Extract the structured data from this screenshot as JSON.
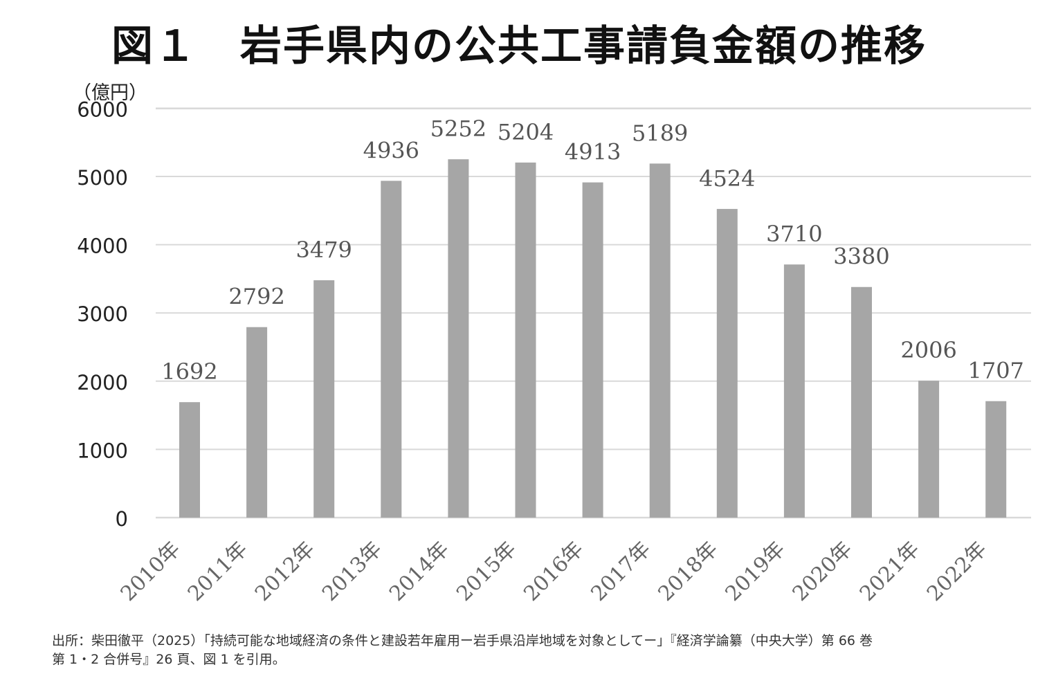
{
  "title": "図１　岩手県内の公共工事請負金額の推移",
  "source_lines": [
    "出所：柴田徹平（2025）「持続可能な地域経済の条件と建設若年雇用ー岩手県沿岸地域を対象としてー」『経済学論纂（中央大学）第 66 巻",
    "第 1・2 合併号』26 頁、図 1 を引用。"
  ],
  "chart_data": {
    "type": "bar",
    "title": "図１　岩手県内の公共工事請負金額の推移",
    "ylabel": "（億円）",
    "xlabel": "",
    "ylim": [
      0,
      6000
    ],
    "yticks": [
      "0",
      "1000",
      "2000",
      "3000",
      "4000",
      "5000",
      "6000"
    ],
    "x_tick_labels": [
      "2010年",
      "2011年",
      "2012年",
      "2013年",
      "2014年",
      "2015年",
      "2016年",
      "2017年",
      "2018年",
      "2019年",
      "2020年",
      "2021年",
      "2022年"
    ],
    "values": [
      1692,
      2792,
      3479,
      4936,
      5252,
      5204,
      4913,
      5189,
      4524,
      3710,
      3380,
      2006,
      1707
    ],
    "data_labels": [
      "1692",
      "2792",
      "3479",
      "4936",
      "5252",
      "5204",
      "4913",
      "5189",
      "4524",
      "3710",
      "3380",
      "2006",
      "1707"
    ],
    "grid": true,
    "legend": "none",
    "bar_color": "#a6a6a6",
    "grid_color": "#d9d9d9"
  }
}
